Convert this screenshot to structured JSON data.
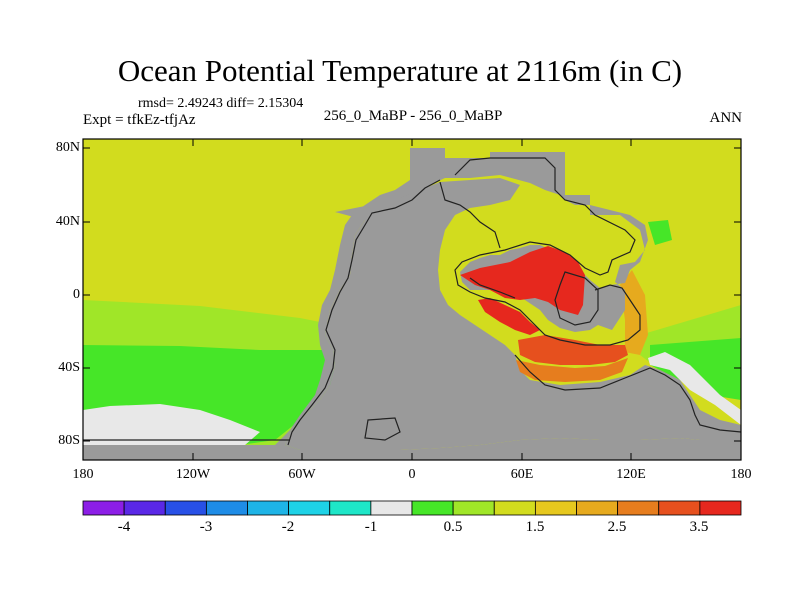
{
  "title": "Ocean Potential Temperature at 2116m (in C)",
  "stats": "rmsd= 2.49243  diff= 2.15304",
  "experiment": "Expt = tfkEz-tfjAz",
  "case": "256_0_MaBP - 256_0_MaBP",
  "season": "ANN",
  "lat_ticks": [
    "80N",
    "40N",
    "0",
    "40S",
    "80S"
  ],
  "lon_ticks": [
    "180",
    "120W",
    "60W",
    "0",
    "60E",
    "120E",
    "180"
  ],
  "colorbar": {
    "colors": [
      "#8c1ee6",
      "#5a28e6",
      "#2850e6",
      "#1e8ce6",
      "#1eb4e6",
      "#1ed2e6",
      "#1ee6c8",
      "#e8e8e8",
      "#46e628",
      "#a0e628",
      "#d2dc1e",
      "#e6c81e",
      "#e6aa1e",
      "#e67d1e",
      "#e6501e",
      "#e6281e"
    ],
    "labels": [
      "-4",
      "-3",
      "-2",
      "-1",
      "0.5",
      "1.5",
      "2.5",
      "3.5"
    ]
  },
  "legend_colors": {
    "land": "#9a9a9a",
    "background": "#d2dc1e"
  }
}
